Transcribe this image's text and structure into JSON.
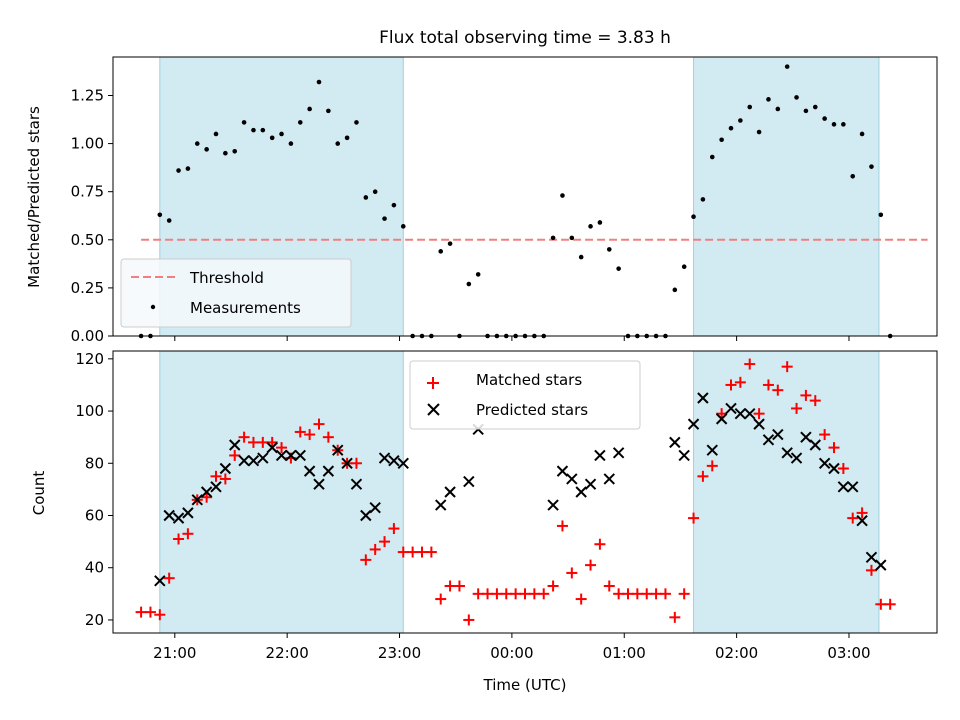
{
  "chart_data": [
    {
      "type": "scatter",
      "title": "Flux total observing time = 3.83 h",
      "ylabel": "Matched/Predicted stars",
      "xlim": [
        "20:27",
        "03:47"
      ],
      "ylim": [
        0,
        1.45
      ],
      "yticks": [
        0.0,
        0.25,
        0.5,
        0.75,
        1.0,
        1.25
      ],
      "ytick_labels": [
        "0.00",
        "0.25",
        "0.50",
        "0.75",
        "1.00",
        "1.25"
      ],
      "grid": false,
      "legend_position": "lower-left",
      "legend": [
        {
          "label": "Threshold",
          "style": "dashed-line"
        },
        {
          "label": "Measurements",
          "style": "dot"
        }
      ],
      "shaded_intervals": [
        [
          "20:52",
          "23:02"
        ],
        [
          "01:37",
          "03:16"
        ]
      ],
      "threshold": {
        "value": 0.5,
        "x_range": [
          "20:42",
          "03:42"
        ],
        "color": "#f08080"
      },
      "series": [
        {
          "name": "Measurements",
          "color": "#000000",
          "x": [
            "20:42",
            "20:47",
            "20:52",
            "20:57",
            "21:02",
            "21:07",
            "21:12",
            "21:17",
            "21:22",
            "21:27",
            "21:32",
            "21:37",
            "21:42",
            "21:47",
            "21:52",
            "21:57",
            "22:02",
            "22:07",
            "22:12",
            "22:17",
            "22:22",
            "22:27",
            "22:32",
            "22:37",
            "22:42",
            "22:47",
            "22:52",
            "22:57",
            "23:02",
            "23:07",
            "23:12",
            "23:17",
            "23:22",
            "23:27",
            "23:32",
            "23:37",
            "23:42",
            "23:47",
            "23:52",
            "23:57",
            "00:02",
            "00:07",
            "00:12",
            "00:17",
            "00:22",
            "00:27",
            "00:32",
            "00:37",
            "00:42",
            "00:47",
            "00:52",
            "00:57",
            "01:02",
            "01:07",
            "01:12",
            "01:17",
            "01:22",
            "01:27",
            "01:32",
            "01:37",
            "01:42",
            "01:47",
            "01:52",
            "01:57",
            "02:02",
            "02:07",
            "02:12",
            "02:17",
            "02:22",
            "02:27",
            "02:32",
            "02:37",
            "02:42",
            "02:47",
            "02:52",
            "02:57",
            "03:02",
            "03:07",
            "03:12",
            "03:17",
            "03:22"
          ],
          "y": [
            0.0,
            0.0,
            0.63,
            0.6,
            0.86,
            0.87,
            1.0,
            0.97,
            1.05,
            0.95,
            0.96,
            1.11,
            1.07,
            1.07,
            1.03,
            1.05,
            1.0,
            1.11,
            1.18,
            1.32,
            1.17,
            1.0,
            1.03,
            1.11,
            0.72,
            0.75,
            0.61,
            0.68,
            0.57,
            0.0,
            0.0,
            0.0,
            0.44,
            0.48,
            0.0,
            0.27,
            0.32,
            0.0,
            0.0,
            0.0,
            0.0,
            0.0,
            0.0,
            0.0,
            0.51,
            0.73,
            0.51,
            0.41,
            0.57,
            0.59,
            0.45,
            0.35,
            0.0,
            0.0,
            0.0,
            0.0,
            0.0,
            0.24,
            0.36,
            0.62,
            0.71,
            0.93,
            1.02,
            1.08,
            1.12,
            1.19,
            1.06,
            1.23,
            1.18,
            1.4,
            1.24,
            1.17,
            1.19,
            1.13,
            1.1,
            1.1,
            0.83,
            1.05,
            0.88,
            0.63,
            0.0
          ]
        }
      ]
    },
    {
      "type": "scatter",
      "xlabel": "Time (UTC)",
      "ylabel": "Count",
      "xlim": [
        "20:27",
        "03:47"
      ],
      "ylim": [
        15,
        123
      ],
      "yticks": [
        20,
        40,
        60,
        80,
        100,
        120
      ],
      "xticks": [
        "21:00",
        "22:00",
        "23:00",
        "00:00",
        "01:00",
        "02:00",
        "03:00"
      ],
      "grid": false,
      "legend_position": "upper-center",
      "shaded_intervals": [
        [
          "20:52",
          "23:02"
        ],
        [
          "01:37",
          "03:16"
        ]
      ],
      "series": [
        {
          "name": "Matched stars",
          "marker": "+",
          "color": "#ff0000",
          "x": [
            "20:42",
            "20:47",
            "20:52",
            "20:57",
            "21:02",
            "21:07",
            "21:12",
            "21:17",
            "21:22",
            "21:27",
            "21:32",
            "21:37",
            "21:42",
            "21:47",
            "21:52",
            "21:57",
            "22:02",
            "22:07",
            "22:12",
            "22:17",
            "22:22",
            "22:27",
            "22:32",
            "22:37",
            "22:42",
            "22:47",
            "22:52",
            "22:57",
            "23:02",
            "23:07",
            "23:12",
            "23:17",
            "23:22",
            "23:27",
            "23:32",
            "23:37",
            "23:42",
            "23:47",
            "23:52",
            "23:57",
            "00:02",
            "00:07",
            "00:12",
            "00:17",
            "00:22",
            "00:27",
            "00:32",
            "00:37",
            "00:42",
            "00:47",
            "00:52",
            "00:57",
            "01:02",
            "01:07",
            "01:12",
            "01:17",
            "01:22",
            "01:27",
            "01:32",
            "01:37",
            "01:42",
            "01:47",
            "01:52",
            "01:57",
            "02:02",
            "02:07",
            "02:12",
            "02:17",
            "02:22",
            "02:27",
            "02:32",
            "02:37",
            "02:42",
            "02:47",
            "02:52",
            "02:57",
            "03:02",
            "03:07",
            "03:12",
            "03:17",
            "03:22"
          ],
          "y": [
            23,
            23,
            22,
            36,
            51,
            53,
            66,
            67,
            75,
            74,
            83,
            90,
            88,
            88,
            88,
            86,
            82,
            92,
            91,
            95,
            90,
            85,
            80,
            80,
            43,
            47,
            50,
            55,
            46,
            46,
            46,
            46,
            28,
            33,
            33,
            20,
            30,
            30,
            30,
            30,
            30,
            30,
            30,
            30,
            33,
            56,
            38,
            28,
            41,
            49,
            33,
            30,
            30,
            30,
            30,
            30,
            30,
            21,
            30,
            59,
            75,
            79,
            99,
            110,
            111,
            118,
            99,
            110,
            108,
            117,
            101,
            106,
            104,
            91,
            86,
            78,
            59,
            61,
            39,
            26,
            26
          ]
        },
        {
          "name": "Predicted stars",
          "marker": "x",
          "color": "#000000",
          "x": [
            "20:52",
            "20:57",
            "21:02",
            "21:07",
            "21:12",
            "21:17",
            "21:22",
            "21:27",
            "21:32",
            "21:37",
            "21:42",
            "21:47",
            "21:52",
            "21:57",
            "22:02",
            "22:07",
            "22:12",
            "22:17",
            "22:22",
            "22:27",
            "22:32",
            "22:37",
            "22:42",
            "22:47",
            "22:52",
            "22:57",
            "23:02",
            "23:22",
            "23:27",
            "23:37",
            "23:42",
            "00:22",
            "00:27",
            "00:32",
            "00:37",
            "00:42",
            "00:47",
            "00:52",
            "00:57",
            "01:27",
            "01:32",
            "01:37",
            "01:42",
            "01:47",
            "01:52",
            "01:57",
            "02:02",
            "02:07",
            "02:12",
            "02:17",
            "02:22",
            "02:27",
            "02:32",
            "02:37",
            "02:42",
            "02:47",
            "02:52",
            "02:57",
            "03:02",
            "03:07",
            "03:12",
            "03:17"
          ],
          "y": [
            35,
            60,
            59,
            61,
            66,
            69,
            71,
            78,
            87,
            81,
            81,
            82,
            86,
            83,
            83,
            83,
            77,
            72,
            77,
            85,
            80,
            72,
            60,
            63,
            82,
            81,
            80,
            64,
            69,
            73,
            93,
            64,
            77,
            74,
            69,
            72,
            83,
            74,
            84,
            88,
            83,
            95,
            105,
            85,
            97,
            101,
            99,
            99,
            95,
            89,
            91,
            84,
            82,
            90,
            87,
            80,
            78,
            71,
            71,
            58,
            44,
            41
          ]
        }
      ]
    }
  ]
}
